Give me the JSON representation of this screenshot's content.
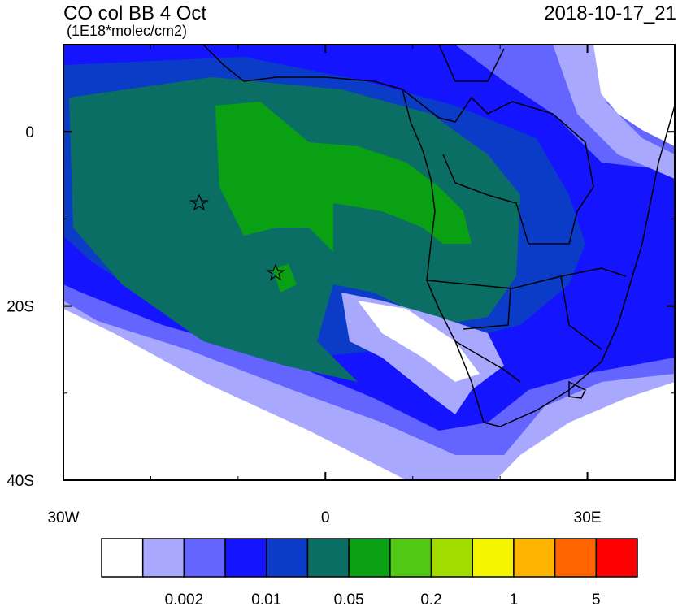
{
  "header": {
    "title": "CO col BB 4 Oct",
    "subtitle": "(1E18*molec/cm2)",
    "date": "2018-10-17_21"
  },
  "map": {
    "lonlim": [
      -30,
      40
    ],
    "latlim": [
      -40,
      10
    ],
    "lon_ticks": [
      {
        "value": -30,
        "label": "30W"
      },
      0,
      {
        "value": 30,
        "label": "30E"
      }
    ],
    "lat_ticks": [
      0,
      {
        "value": -20,
        "label": "20S"
      },
      {
        "value": -40,
        "label": "40S"
      }
    ]
  },
  "colorbar": {
    "colors": [
      "#ffffff",
      "#a8a8ff",
      "#6464ff",
      "#1414ff",
      "#0a3cc8",
      "#0a6e64",
      "#0aa014",
      "#50c814",
      "#a0dc00",
      "#f5f500",
      "#ffb400",
      "#ff6400",
      "#ff0000"
    ],
    "labels": [
      "0.002",
      "0.01",
      "0.05",
      "0.2",
      "1",
      "5"
    ]
  }
}
